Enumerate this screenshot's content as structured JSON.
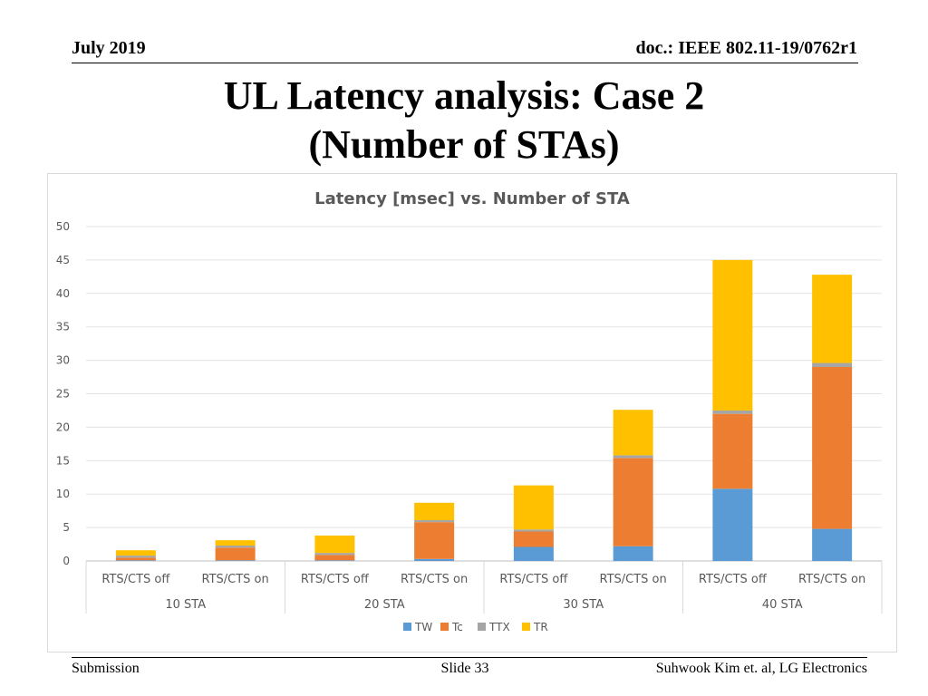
{
  "header": {
    "date": "July 2019",
    "doc": "doc.: IEEE 802.11-19/0762r1"
  },
  "slide": {
    "title_line1": "UL Latency analysis: Case 2",
    "title_line2": "(Number of STAs)"
  },
  "footer": {
    "left": "Submission",
    "center": "Slide 33",
    "right": "Suhwook Kim et. al, LG Electronics"
  },
  "chart_data": {
    "type": "bar",
    "stacked": true,
    "title": "Latency [msec] vs. Number of STA",
    "xlabel": "",
    "ylabel": "",
    "ylim": [
      0,
      50
    ],
    "yticks": [
      0,
      5,
      10,
      15,
      20,
      25,
      30,
      35,
      40,
      45,
      50
    ],
    "grid": true,
    "legend_position": "bottom",
    "categories": [
      "RTS/CTS off",
      "RTS/CTS on",
      "RTS/CTS off",
      "RTS/CTS on",
      "RTS/CTS off",
      "RTS/CTS on",
      "RTS/CTS off",
      "RTS/CTS on"
    ],
    "groups": [
      "10 STA",
      "20 STA",
      "30 STA",
      "40 STA"
    ],
    "series": [
      {
        "name": "TW",
        "color": "#5b9bd5",
        "values": [
          0.1,
          0.1,
          0.1,
          0.3,
          2.1,
          2.2,
          10.8,
          4.8
        ]
      },
      {
        "name": "Tc",
        "color": "#ed7d31",
        "values": [
          0.4,
          1.9,
          0.8,
          5.5,
          2.3,
          13.2,
          11.2,
          24.2
        ]
      },
      {
        "name": "TTX",
        "color": "#a5a5a5",
        "values": [
          0.3,
          0.3,
          0.3,
          0.3,
          0.3,
          0.4,
          0.5,
          0.6
        ]
      },
      {
        "name": "TR",
        "color": "#ffc000",
        "values": [
          0.8,
          0.8,
          2.6,
          2.6,
          6.6,
          6.8,
          22.5,
          13.2
        ]
      }
    ]
  }
}
